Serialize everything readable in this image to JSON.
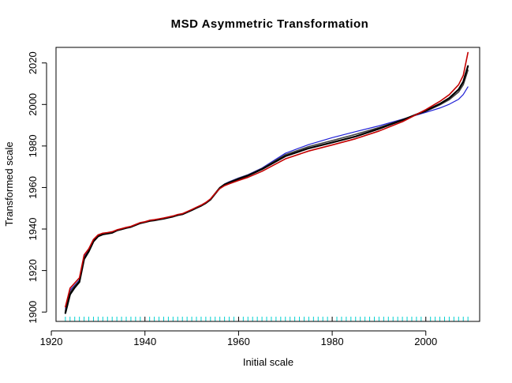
{
  "chart_data": {
    "type": "line",
    "title": "MSD  Asymmetric  Transformation",
    "xlabel": "Initial  scale",
    "ylabel": "Transformed  scale",
    "xlim": [
      1921,
      2011.5
    ],
    "ylim": [
      1895.5,
      2027.5
    ],
    "xticks": [
      1920,
      1940,
      1960,
      1980,
      2000
    ],
    "yticks": [
      1900,
      1920,
      1940,
      1960,
      1980,
      2000,
      2020
    ],
    "grid": false,
    "legend": "none",
    "rug": {
      "color": "#00d0d0",
      "start": 1923,
      "end": 2009,
      "step": 1
    },
    "colors": {
      "black": "#000000",
      "dark_gray": "#404040",
      "blue": "#1f1fd6",
      "red": "#c40000"
    },
    "series": [
      {
        "color": "#1f1fd6",
        "width": 1.2,
        "x": [
          1923,
          1924,
          1925,
          1926,
          1927,
          1928,
          1929,
          1930,
          1931,
          1932,
          1933,
          1934,
          1935,
          1936,
          1937,
          1938,
          1939,
          1940,
          1941,
          1942,
          1943,
          1944,
          1945,
          1946,
          1947,
          1948,
          1949,
          1950,
          1951,
          1952,
          1953,
          1954,
          1955,
          1956,
          1957,
          1958,
          1960,
          1962,
          1965,
          1970,
          1975,
          1980,
          1985,
          1990,
          1995,
          2000,
          2003,
          2005,
          2007,
          2008,
          2009
        ],
        "y": [
          1901.5,
          1910.5,
          1913,
          1915.5,
          1926.5,
          1930,
          1934.5,
          1936.8,
          1937.6,
          1937.9,
          1938.3,
          1939.4,
          1940,
          1940.6,
          1941.1,
          1942,
          1942.9,
          1943.3,
          1944,
          1944.3,
          1944.7,
          1945.1,
          1945.6,
          1946.1,
          1946.8,
          1947.2,
          1948.2,
          1949.2,
          1950.3,
          1951.3,
          1952.6,
          1954.3,
          1957.2,
          1960,
          1961.7,
          1962.8,
          1964.6,
          1966.2,
          1969.4,
          1976.5,
          1980.7,
          1984,
          1986.9,
          1989.7,
          1992.9,
          1996.2,
          1998.3,
          2000.1,
          2002.5,
          2004.8,
          2008.5
        ]
      },
      {
        "color": "#404040",
        "width": 1.6,
        "x": [
          1923,
          1924,
          1925,
          1926,
          1927,
          1928,
          1929,
          1930,
          1931,
          1932,
          1933,
          1934,
          1935,
          1936,
          1937,
          1938,
          1939,
          1940,
          1941,
          1942,
          1943,
          1944,
          1945,
          1946,
          1947,
          1948,
          1949,
          1950,
          1951,
          1952,
          1953,
          1954,
          1955,
          1956,
          1957,
          1958,
          1960,
          1962,
          1965,
          1970,
          1975,
          1980,
          1985,
          1990,
          1995,
          2000,
          2003,
          2005,
          2007,
          2008,
          2009
        ],
        "y": [
          1900.5,
          1909.5,
          1912.5,
          1915,
          1926,
          1929.5,
          1934.2,
          1936.5,
          1937.5,
          1937.9,
          1938.3,
          1939.4,
          1940,
          1940.6,
          1941.1,
          1942,
          1942.9,
          1943.3,
          1944,
          1944.3,
          1944.7,
          1945.1,
          1945.6,
          1946.1,
          1946.8,
          1947.2,
          1948.2,
          1949.2,
          1950.3,
          1951.3,
          1952.6,
          1954.3,
          1957.2,
          1960,
          1961.6,
          1962.6,
          1964.4,
          1966,
          1969.1,
          1975.8,
          1979.7,
          1982.6,
          1985.6,
          1988.9,
          1992.7,
          1996.7,
          1999.8,
          2002.3,
          2006,
          2009.5,
          2016.5
        ]
      },
      {
        "color": "#000000",
        "width": 2.2,
        "x": [
          1923,
          1924,
          1925,
          1926,
          1927,
          1928,
          1929,
          1930,
          1931,
          1932,
          1933,
          1934,
          1935,
          1936,
          1937,
          1938,
          1939,
          1940,
          1941,
          1942,
          1943,
          1944,
          1945,
          1946,
          1947,
          1948,
          1949,
          1950,
          1951,
          1952,
          1953,
          1954,
          1955,
          1956,
          1957,
          1958,
          1960,
          1962,
          1965,
          1970,
          1975,
          1980,
          1985,
          1990,
          1995,
          2000,
          2003,
          2005,
          2007,
          2008,
          2009
        ],
        "y": [
          1899.5,
          1908.5,
          1911.8,
          1914.5,
          1925.5,
          1929.2,
          1934,
          1936.5,
          1937.4,
          1937.8,
          1938.2,
          1939.3,
          1939.9,
          1940.5,
          1941,
          1941.9,
          1942.8,
          1943.3,
          1943.9,
          1944.2,
          1944.6,
          1945,
          1945.5,
          1946,
          1946.7,
          1947.1,
          1948.1,
          1949.1,
          1950.2,
          1951.2,
          1952.5,
          1954.2,
          1957,
          1959.8,
          1961.4,
          1962.3,
          1964.1,
          1965.7,
          1968.8,
          1975.1,
          1978.9,
          1981.7,
          1984.6,
          1988.3,
          1992.5,
          1997,
          2000.3,
          2003.1,
          2007.2,
          2011,
          2018.5
        ]
      },
      {
        "color": "#c40000",
        "width": 1.6,
        "x": [
          1923,
          1924,
          1925,
          1926,
          1927,
          1928,
          1929,
          1930,
          1931,
          1932,
          1933,
          1934,
          1935,
          1936,
          1937,
          1938,
          1939,
          1940,
          1941,
          1942,
          1943,
          1944,
          1945,
          1946,
          1947,
          1948,
          1949,
          1950,
          1951,
          1952,
          1953,
          1954,
          1955,
          1956,
          1957,
          1958,
          1960,
          1962,
          1965,
          1970,
          1975,
          1980,
          1985,
          1990,
          1995,
          2000,
          2003,
          2005,
          2007,
          2008,
          2009
        ],
        "y": [
          1902.5,
          1911.5,
          1914,
          1916.5,
          1927.5,
          1930.5,
          1935,
          1937.2,
          1938,
          1938.3,
          1938.7,
          1939.6,
          1940.2,
          1940.8,
          1941.3,
          1942.2,
          1943.1,
          1943.5,
          1944.2,
          1944.5,
          1944.9,
          1945.3,
          1945.8,
          1946.3,
          1947,
          1947.4,
          1948.4,
          1949.4,
          1950.5,
          1951.5,
          1952.8,
          1954.5,
          1957.2,
          1959.5,
          1960.9,
          1961.8,
          1963.4,
          1964.9,
          1967.8,
          1973.8,
          1977.6,
          1980.5,
          1983.5,
          1987.2,
          1991.7,
          1997.5,
          2001.5,
          2004.7,
          2009.5,
          2014,
          2025
        ]
      }
    ]
  }
}
